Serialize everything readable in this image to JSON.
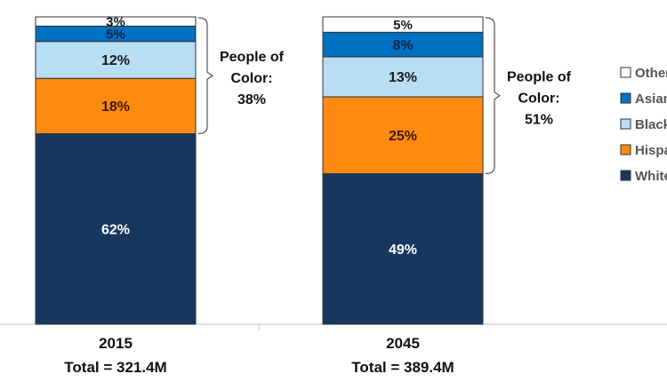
{
  "chart_data": {
    "type": "bar",
    "stacked": true,
    "categories": [
      "2015",
      "2045"
    ],
    "category_subtitles": [
      "Total = 321.4M",
      "Total = 389.4M"
    ],
    "series": [
      {
        "name": "White",
        "color": "#17375e",
        "values": [
          62,
          49
        ],
        "labels": [
          "62%",
          "49%"
        ]
      },
      {
        "name": "Hispanic",
        "color": "#ff8a10",
        "values": [
          18,
          25
        ],
        "labels": [
          "18%",
          "25%"
        ]
      },
      {
        "name": "Black",
        "color": "#b7def3",
        "values": [
          12,
          13
        ],
        "labels": [
          "12%",
          "13%"
        ]
      },
      {
        "name": "Asian",
        "color": "#0070c0",
        "values": [
          5,
          8
        ],
        "labels": [
          "5%",
          "8%"
        ]
      },
      {
        "name": "Other",
        "color": "#ffffff",
        "values": [
          3,
          5
        ],
        "labels": [
          "3%",
          "5%"
        ]
      }
    ],
    "annotations": [
      {
        "category": "2015",
        "lines": [
          "People of",
          "Color:",
          "38%"
        ]
      },
      {
        "category": "2045",
        "lines": [
          "People of",
          "Color:",
          "51%"
        ]
      }
    ],
    "ylim": [
      0,
      100
    ],
    "grid": false,
    "legend_order": [
      "Other",
      "Asian",
      "Black",
      "Hispanic",
      "White"
    ],
    "legend_placement": "right"
  }
}
